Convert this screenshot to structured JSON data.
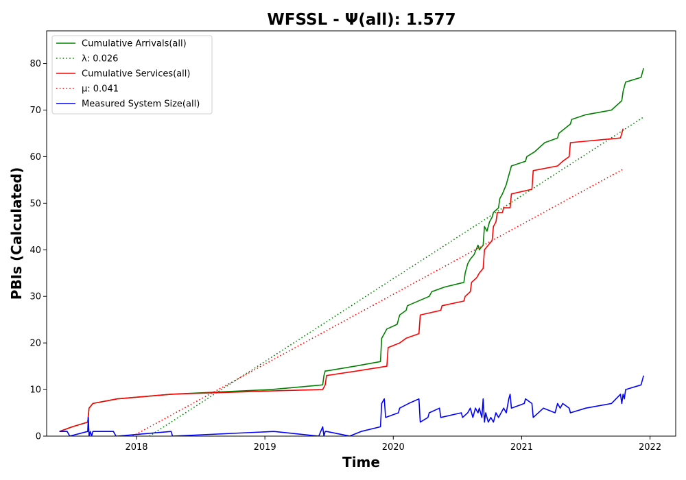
{
  "chart_data": {
    "type": "line",
    "title": "WFSSL -  Ψ(all): 1.577",
    "xlabel": "Time",
    "ylabel": "PBIs (Calculated)",
    "xlim": [
      2017.3,
      2022.2
    ],
    "ylim": [
      0,
      87
    ],
    "grid": false,
    "legend_position": "top-left",
    "x_ticks": [
      2018,
      2019,
      2020,
      2021,
      2022
    ],
    "x_tick_labels": [
      "2018",
      "2019",
      "2020",
      "2021",
      "2022"
    ],
    "y_ticks": [
      0,
      10,
      20,
      30,
      40,
      50,
      60,
      70,
      80
    ],
    "y_tick_labels": [
      "0",
      "10",
      "20",
      "30",
      "40",
      "50",
      "60",
      "70",
      "80"
    ],
    "series": [
      {
        "name": "Cumulative Arrivals(all)",
        "color": "#008000",
        "style": "solid",
        "x": [
          2017.4,
          2017.5,
          2017.62,
          2017.63,
          2017.66,
          2017.85,
          2018.27,
          2019.05,
          2019.45,
          2019.46,
          2019.47,
          2019.48,
          2019.7,
          2019.9,
          2019.91,
          2019.93,
          2019.95,
          2020.03,
          2020.05,
          2020.1,
          2020.11,
          2020.28,
          2020.3,
          2020.4,
          2020.55,
          2020.56,
          2020.58,
          2020.6,
          2020.63,
          2020.66,
          2020.67,
          2020.7,
          2020.71,
          2020.73,
          2020.75,
          2020.77,
          2020.78,
          2020.82,
          2020.83,
          2020.85,
          2020.88,
          2020.89,
          2020.9,
          2020.92,
          2021.03,
          2021.04,
          2021.1,
          2021.18,
          2021.28,
          2021.29,
          2021.38,
          2021.39,
          2021.5,
          2021.7,
          2021.78,
          2021.79,
          2021.8,
          2021.81,
          2021.93,
          2021.95
        ],
        "y": [
          1,
          2,
          3,
          6,
          7,
          8,
          9,
          10,
          11,
          13,
          14,
          14,
          15,
          16,
          21,
          22,
          23,
          24,
          26,
          27,
          28,
          30,
          31,
          32,
          33,
          35,
          37,
          38,
          39,
          41,
          40,
          41,
          45,
          44,
          46,
          47,
          48,
          49,
          51,
          52,
          54,
          55,
          56,
          58,
          59,
          60,
          61,
          63,
          64,
          65,
          67,
          68,
          69,
          70,
          72,
          74,
          75,
          76,
          77,
          79
        ]
      },
      {
        "name": "λ: 0.026",
        "color": "#008000",
        "style": "dotted",
        "x": [
          2018.1,
          2021.95
        ],
        "y": [
          0,
          68.5
        ]
      },
      {
        "name": "Cumulative Services(all)",
        "color": "#ff0000",
        "style": "solid",
        "x": [
          2017.4,
          2017.5,
          2017.62,
          2017.63,
          2017.66,
          2017.85,
          2018.27,
          2019.05,
          2019.45,
          2019.47,
          2019.48,
          2019.72,
          2019.95,
          2019.96,
          2020.05,
          2020.1,
          2020.2,
          2020.21,
          2020.37,
          2020.38,
          2020.55,
          2020.56,
          2020.6,
          2020.61,
          2020.65,
          2020.67,
          2020.7,
          2020.71,
          2020.74,
          2020.77,
          2020.78,
          2020.8,
          2020.81,
          2020.85,
          2020.86,
          2020.91,
          2020.92,
          2021.08,
          2021.09,
          2021.28,
          2021.32,
          2021.37,
          2021.38,
          2021.77,
          2021.78,
          2021.79
        ],
        "y": [
          1,
          2,
          3,
          6,
          7,
          8,
          9,
          9.7,
          10,
          11,
          13,
          14,
          15,
          19,
          20,
          21,
          22,
          26,
          27,
          28,
          29,
          30,
          31,
          33,
          34,
          35,
          36,
          40,
          41,
          42,
          45,
          46,
          48,
          48,
          49,
          49,
          52,
          53,
          57,
          58,
          59,
          60,
          63,
          64,
          65,
          66
        ]
      },
      {
        "name": "μ: 0.041",
        "color": "#ff0000",
        "style": "dotted",
        "x": [
          2017.97,
          2021.79
        ],
        "y": [
          0,
          57.3
        ]
      },
      {
        "name": "Measured System Size(all)",
        "color": "#0000ff",
        "style": "solid",
        "x": [
          2017.4,
          2017.46,
          2017.48,
          2017.62,
          2017.625,
          2017.63,
          2017.64,
          2017.65,
          2017.66,
          2017.82,
          2017.84,
          2017.85,
          2018.27,
          2018.28,
          2019.07,
          2019.42,
          2019.45,
          2019.46,
          2019.47,
          2019.48,
          2019.66,
          2019.75,
          2019.9,
          2019.91,
          2019.93,
          2019.94,
          2020.04,
          2020.05,
          2020.12,
          2020.2,
          2020.21,
          2020.27,
          2020.28,
          2020.36,
          2020.37,
          2020.53,
          2020.54,
          2020.58,
          2020.6,
          2020.62,
          2020.64,
          2020.66,
          2020.67,
          2020.69,
          2020.7,
          2020.71,
          2020.72,
          2020.74,
          2020.76,
          2020.78,
          2020.8,
          2020.82,
          2020.84,
          2020.86,
          2020.88,
          2020.9,
          2020.91,
          2020.92,
          2021.02,
          2021.03,
          2021.08,
          2021.09,
          2021.17,
          2021.26,
          2021.28,
          2021.3,
          2021.32,
          2021.37,
          2021.38,
          2021.5,
          2021.7,
          2021.77,
          2021.78,
          2021.79,
          2021.8,
          2021.81,
          2021.93,
          2021.95
        ],
        "y": [
          1,
          1,
          0,
          1,
          4,
          0,
          1,
          0,
          1,
          1,
          0,
          0,
          1,
          0,
          1,
          0,
          2,
          0,
          1,
          1,
          0,
          1,
          2,
          7,
          8,
          4,
          5,
          6,
          7,
          8,
          3,
          4,
          5,
          6,
          4,
          5,
          4,
          5,
          6,
          4,
          6,
          5,
          6,
          4,
          8,
          3,
          5,
          3,
          4,
          3,
          5,
          4,
          5,
          6,
          5,
          8,
          9,
          6,
          7,
          8,
          7,
          4,
          6,
          5,
          7,
          6,
          7,
          6,
          5,
          6,
          7,
          9,
          7,
          9,
          8,
          10,
          11,
          13
        ]
      }
    ]
  }
}
